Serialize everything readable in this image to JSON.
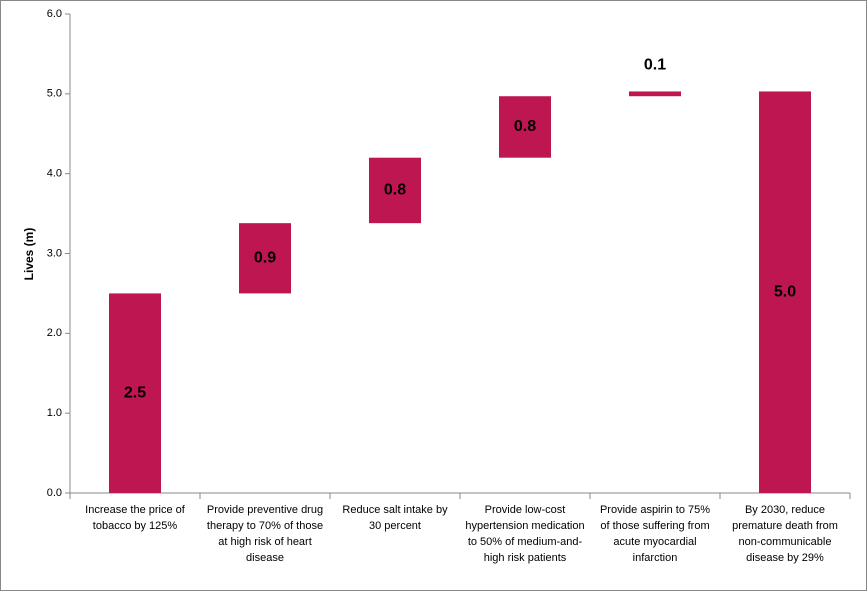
{
  "chart_data": {
    "type": "waterfall",
    "y_label": "Lives (m)",
    "categories": [
      "Increase the price of tobacco by 125%",
      "Provide preventive drug therapy to 70% of those at high risk of heart disease",
      "Reduce salt intake by 30 percent",
      "Provide low-cost hypertension medication to 50% of medium-and-high risk patients",
      "Provide aspirin to 75% of those suffering from acute myocardial infarction",
      "By 2030, reduce premature death from non-communicable disease by 29%"
    ],
    "values": [
      2.5,
      0.88,
      0.82,
      0.77,
      0.06,
      5.03
    ],
    "value_labels": [
      "2.5",
      "0.9",
      "0.8",
      "0.8",
      "0.1",
      "5.0"
    ],
    "is_total": [
      false,
      false,
      false,
      false,
      false,
      true
    ],
    "color": "#be1650",
    "ylim": [
      0,
      6
    ],
    "yticks": [
      {
        "value": 0,
        "label": "0.0"
      },
      {
        "value": 1,
        "label": "1.0"
      },
      {
        "value": 2,
        "label": "2.0"
      },
      {
        "value": 3,
        "label": "3.0"
      },
      {
        "value": 4,
        "label": "4.0"
      },
      {
        "value": 5,
        "label": "5.0"
      },
      {
        "value": 6,
        "label": "6.0"
      }
    ],
    "grid": false
  }
}
